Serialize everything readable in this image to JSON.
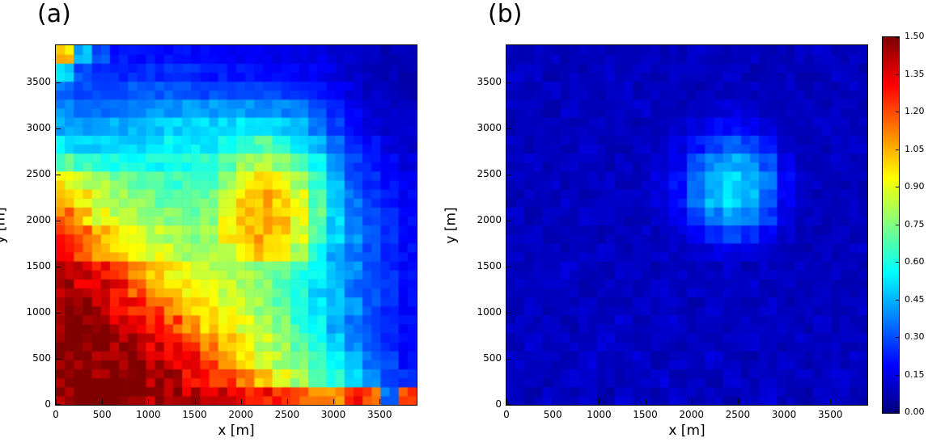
{
  "figure": {
    "background": "#ffffff"
  },
  "chart_data": {
    "type": "heatmap",
    "colormap": "jet",
    "x_range": [
      0,
      3900
    ],
    "y_range": [
      0,
      3900
    ],
    "value_range": [
      0,
      1.5
    ],
    "x_ticks": [
      0,
      500,
      1000,
      1500,
      2000,
      2500,
      3000,
      3500
    ],
    "y_ticks": [
      0,
      500,
      1000,
      1500,
      2000,
      2500,
      3000,
      3500
    ],
    "colorbar_ticks": [
      "0.00",
      "0.15",
      "0.30",
      "0.45",
      "0.60",
      "0.75",
      "0.90",
      "1.05",
      "1.20",
      "1.35",
      "1.50"
    ],
    "grid": {
      "nx": 20,
      "ny": 20,
      "row_order": "bottom-to-top (first row is y=0)",
      "cell_size_m": 195
    },
    "panels": [
      {
        "label": "(a)",
        "xlabel": "x [m]",
        "ylabel": "y [m]",
        "values": [
          [
            1.5,
            1.5,
            1.5,
            1.5,
            1.5,
            1.45,
            1.45,
            1.4,
            1.4,
            1.35,
            1.3,
            1.3,
            1.25,
            1.2,
            1.15,
            1.1,
            1.3,
            1.2,
            0.35,
            1.2
          ],
          [
            1.5,
            1.5,
            1.5,
            1.5,
            1.5,
            1.45,
            1.4,
            1.35,
            1.28,
            1.2,
            1.1,
            1.0,
            0.9,
            0.8,
            0.7,
            0.6,
            0.5,
            0.4,
            0.3,
            0.25
          ],
          [
            1.5,
            1.5,
            1.5,
            1.5,
            1.45,
            1.4,
            1.35,
            1.3,
            1.2,
            1.1,
            1.0,
            0.9,
            0.82,
            0.75,
            0.65,
            0.55,
            0.45,
            0.35,
            0.3,
            0.2
          ],
          [
            1.5,
            1.5,
            1.5,
            1.45,
            1.4,
            1.35,
            1.3,
            1.2,
            1.1,
            1.02,
            0.95,
            0.85,
            0.8,
            0.7,
            0.6,
            0.5,
            0.4,
            0.3,
            0.25,
            0.2
          ],
          [
            1.5,
            1.5,
            1.45,
            1.4,
            1.35,
            1.3,
            1.2,
            1.1,
            1.0,
            0.95,
            0.9,
            0.85,
            0.75,
            0.65,
            0.55,
            0.45,
            0.35,
            0.3,
            0.25,
            0.2
          ],
          [
            1.5,
            1.45,
            1.4,
            1.35,
            1.3,
            1.2,
            1.1,
            1.0,
            0.95,
            0.9,
            0.85,
            0.8,
            0.7,
            0.6,
            0.52,
            0.45,
            0.4,
            0.3,
            0.25,
            0.2
          ],
          [
            1.45,
            1.4,
            1.35,
            1.3,
            1.2,
            1.1,
            1.0,
            0.95,
            0.9,
            0.85,
            0.8,
            0.76,
            0.7,
            0.6,
            0.5,
            0.45,
            0.35,
            0.3,
            0.25,
            0.2
          ],
          [
            1.4,
            1.35,
            1.3,
            1.2,
            1.1,
            1.0,
            0.95,
            0.9,
            0.85,
            0.82,
            0.8,
            0.76,
            0.7,
            0.62,
            0.55,
            0.45,
            0.4,
            0.3,
            0.25,
            0.2
          ],
          [
            1.3,
            1.2,
            1.1,
            1.0,
            0.95,
            0.9,
            0.85,
            0.8,
            0.8,
            0.85,
            0.95,
            1.0,
            0.95,
            0.8,
            0.6,
            0.45,
            0.35,
            0.3,
            0.25,
            0.2
          ],
          [
            1.25,
            1.15,
            1.05,
            0.95,
            0.9,
            0.85,
            0.8,
            0.78,
            0.8,
            0.95,
            1.0,
            1.05,
            1.0,
            0.9,
            0.7,
            0.5,
            0.4,
            0.3,
            0.25,
            0.2
          ],
          [
            1.15,
            1.0,
            0.9,
            0.85,
            0.8,
            0.78,
            0.75,
            0.72,
            0.75,
            0.9,
            1.0,
            1.05,
            1.0,
            0.9,
            0.7,
            0.5,
            0.35,
            0.3,
            0.25,
            0.2
          ],
          [
            1.05,
            0.95,
            0.85,
            0.8,
            0.75,
            0.72,
            0.7,
            0.7,
            0.72,
            0.9,
            1.0,
            1.05,
            1.0,
            0.9,
            0.7,
            0.5,
            0.35,
            0.28,
            0.22,
            0.18
          ],
          [
            0.95,
            0.85,
            0.8,
            0.75,
            0.7,
            0.68,
            0.65,
            0.65,
            0.68,
            0.8,
            0.9,
            0.95,
            0.9,
            0.8,
            0.65,
            0.45,
            0.3,
            0.25,
            0.2,
            0.18
          ],
          [
            0.7,
            0.65,
            0.6,
            0.6,
            0.58,
            0.58,
            0.6,
            0.6,
            0.62,
            0.7,
            0.8,
            0.82,
            0.78,
            0.7,
            0.55,
            0.4,
            0.28,
            0.22,
            0.18,
            0.15
          ],
          [
            0.55,
            0.5,
            0.5,
            0.5,
            0.5,
            0.52,
            0.55,
            0.55,
            0.55,
            0.6,
            0.65,
            0.68,
            0.62,
            0.55,
            0.45,
            0.35,
            0.25,
            0.2,
            0.15,
            0.12
          ],
          [
            0.45,
            0.42,
            0.42,
            0.45,
            0.45,
            0.48,
            0.5,
            0.5,
            0.5,
            0.52,
            0.55,
            0.55,
            0.5,
            0.45,
            0.35,
            0.28,
            0.2,
            0.15,
            0.12,
            0.12
          ],
          [
            0.4,
            0.35,
            0.35,
            0.38,
            0.4,
            0.4,
            0.42,
            0.42,
            0.42,
            0.42,
            0.42,
            0.4,
            0.38,
            0.35,
            0.3,
            0.22,
            0.18,
            0.12,
            0.1,
            0.1
          ],
          [
            0.35,
            0.3,
            0.3,
            0.3,
            0.32,
            0.32,
            0.32,
            0.3,
            0.3,
            0.3,
            0.3,
            0.28,
            0.28,
            0.25,
            0.22,
            0.18,
            0.15,
            0.1,
            0.08,
            0.08
          ],
          [
            0.5,
            0.3,
            0.25,
            0.25,
            0.25,
            0.25,
            0.25,
            0.25,
            0.22,
            0.22,
            0.22,
            0.2,
            0.2,
            0.18,
            0.18,
            0.15,
            0.12,
            0.1,
            0.08,
            0.08
          ],
          [
            1.0,
            0.45,
            0.3,
            0.22,
            0.2,
            0.2,
            0.2,
            0.2,
            0.18,
            0.18,
            0.18,
            0.18,
            0.15,
            0.15,
            0.15,
            0.12,
            0.12,
            0.1,
            0.08,
            0.08
          ]
        ]
      },
      {
        "label": "(b)",
        "xlabel": "x [m]",
        "ylabel": "y [m]",
        "values": [
          [
            0.1,
            0.08,
            0.12,
            0.09,
            0.11,
            0.07,
            0.13,
            0.1,
            0.08,
            0.12,
            0.09,
            0.11,
            0.08,
            0.1,
            0.12,
            0.09,
            0.07,
            0.11,
            0.1,
            0.08
          ],
          [
            0.09,
            0.11,
            0.08,
            0.12,
            0.1,
            0.09,
            0.08,
            0.11,
            0.13,
            0.09,
            0.1,
            0.08,
            0.12,
            0.09,
            0.11,
            0.08,
            0.1,
            0.09,
            0.12,
            0.1
          ],
          [
            0.11,
            0.09,
            0.1,
            0.08,
            0.12,
            0.1,
            0.09,
            0.12,
            0.08,
            0.11,
            0.09,
            0.13,
            0.1,
            0.08,
            0.09,
            0.12,
            0.08,
            0.1,
            0.09,
            0.11
          ],
          [
            0.08,
            0.12,
            0.09,
            0.11,
            0.08,
            0.13,
            0.1,
            0.09,
            0.11,
            0.08,
            0.12,
            0.09,
            0.1,
            0.12,
            0.08,
            0.09,
            0.11,
            0.08,
            0.1,
            0.09
          ],
          [
            0.1,
            0.09,
            0.11,
            0.08,
            0.1,
            0.09,
            0.12,
            0.08,
            0.1,
            0.13,
            0.09,
            0.11,
            0.08,
            0.1,
            0.09,
            0.11,
            0.08,
            0.12,
            0.09,
            0.1
          ],
          [
            0.09,
            0.11,
            0.08,
            0.1,
            0.12,
            0.08,
            0.09,
            0.11,
            0.09,
            0.1,
            0.08,
            0.12,
            0.1,
            0.09,
            0.11,
            0.08,
            0.1,
            0.09,
            0.08,
            0.11
          ],
          [
            0.11,
            0.08,
            0.1,
            0.09,
            0.08,
            0.11,
            0.1,
            0.08,
            0.12,
            0.09,
            0.11,
            0.08,
            0.1,
            0.12,
            0.09,
            0.1,
            0.08,
            0.11,
            0.09,
            0.08
          ],
          [
            0.08,
            0.1,
            0.09,
            0.12,
            0.09,
            0.08,
            0.11,
            0.1,
            0.08,
            0.11,
            0.09,
            0.1,
            0.12,
            0.08,
            0.1,
            0.09,
            0.11,
            0.08,
            0.1,
            0.09
          ],
          [
            0.1,
            0.09,
            0.11,
            0.08,
            0.1,
            0.12,
            0.08,
            0.09,
            0.11,
            0.1,
            0.12,
            0.14,
            0.15,
            0.14,
            0.11,
            0.09,
            0.08,
            0.1,
            0.09,
            0.11
          ],
          [
            0.09,
            0.11,
            0.08,
            0.1,
            0.09,
            0.08,
            0.1,
            0.11,
            0.09,
            0.13,
            0.18,
            0.25,
            0.3,
            0.25,
            0.17,
            0.11,
            0.09,
            0.08,
            0.11,
            0.09
          ],
          [
            0.11,
            0.08,
            0.1,
            0.09,
            0.11,
            0.1,
            0.08,
            0.09,
            0.12,
            0.16,
            0.28,
            0.38,
            0.43,
            0.38,
            0.27,
            0.15,
            0.1,
            0.09,
            0.08,
            0.1
          ],
          [
            0.08,
            0.1,
            0.09,
            0.11,
            0.08,
            0.09,
            0.11,
            0.1,
            0.13,
            0.2,
            0.34,
            0.46,
            0.51,
            0.46,
            0.33,
            0.18,
            0.11,
            0.08,
            0.1,
            0.09
          ],
          [
            0.1,
            0.09,
            0.11,
            0.08,
            0.1,
            0.11,
            0.09,
            0.1,
            0.14,
            0.21,
            0.36,
            0.46,
            0.52,
            0.46,
            0.36,
            0.19,
            0.12,
            0.1,
            0.08,
            0.09
          ],
          [
            0.09,
            0.11,
            0.08,
            0.1,
            0.09,
            0.08,
            0.1,
            0.09,
            0.12,
            0.18,
            0.31,
            0.4,
            0.44,
            0.4,
            0.3,
            0.16,
            0.1,
            0.09,
            0.11,
            0.08
          ],
          [
            0.11,
            0.08,
            0.1,
            0.09,
            0.11,
            0.09,
            0.08,
            0.11,
            0.1,
            0.14,
            0.22,
            0.29,
            0.32,
            0.28,
            0.21,
            0.13,
            0.09,
            0.08,
            0.1,
            0.11
          ],
          [
            0.08,
            0.1,
            0.09,
            0.08,
            0.1,
            0.11,
            0.09,
            0.08,
            0.1,
            0.11,
            0.14,
            0.18,
            0.2,
            0.17,
            0.13,
            0.1,
            0.08,
            0.11,
            0.09,
            0.1
          ],
          [
            0.1,
            0.09,
            0.08,
            0.11,
            0.09,
            0.08,
            0.1,
            0.11,
            0.08,
            0.09,
            0.11,
            0.12,
            0.13,
            0.11,
            0.1,
            0.09,
            0.11,
            0.08,
            0.1,
            0.09
          ],
          [
            0.09,
            0.08,
            0.11,
            0.09,
            0.1,
            0.09,
            0.11,
            0.08,
            0.1,
            0.09,
            0.08,
            0.1,
            0.09,
            0.1,
            0.08,
            0.11,
            0.09,
            0.1,
            0.08,
            0.11
          ],
          [
            0.11,
            0.1,
            0.08,
            0.1,
            0.08,
            0.11,
            0.09,
            0.1,
            0.08,
            0.11,
            0.1,
            0.09,
            0.11,
            0.08,
            0.09,
            0.1,
            0.08,
            0.09,
            0.11,
            0.08
          ],
          [
            0.08,
            0.09,
            0.1,
            0.08,
            0.11,
            0.09,
            0.08,
            0.1,
            0.09,
            0.08,
            0.11,
            0.09,
            0.08,
            0.1,
            0.09,
            0.08,
            0.1,
            0.11,
            0.09,
            0.1
          ]
        ]
      }
    ]
  }
}
